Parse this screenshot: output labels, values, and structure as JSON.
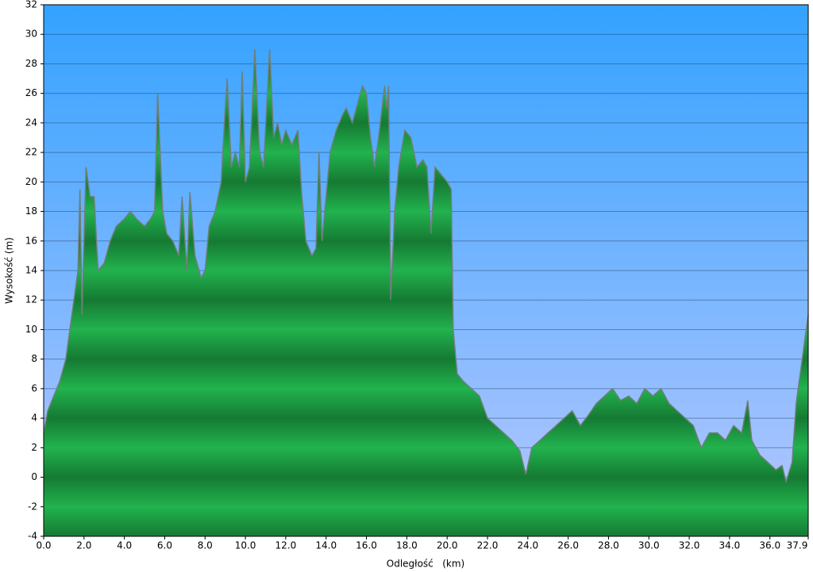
{
  "chart_data": {
    "type": "area",
    "x_label": "Odległość   (km)",
    "y_label": "Wysokość (m)",
    "color": "#1fa84a",
    "xlim": [
      0,
      37.9
    ],
    "ylim": [
      -4,
      32
    ],
    "xticks": [
      {
        "value": 0,
        "label": "0.0"
      },
      {
        "value": 2,
        "label": "2.0"
      },
      {
        "value": 4,
        "label": "4.0"
      },
      {
        "value": 6,
        "label": "6.0"
      },
      {
        "value": 8,
        "label": "8.0"
      },
      {
        "value": 10,
        "label": "10.0"
      },
      {
        "value": 12,
        "label": "12.0"
      },
      {
        "value": 14,
        "label": "14.0"
      },
      {
        "value": 16,
        "label": "16.0"
      },
      {
        "value": 18,
        "label": "18.0"
      },
      {
        "value": 20,
        "label": "20.0"
      },
      {
        "value": 22,
        "label": "22.0"
      },
      {
        "value": 24,
        "label": "24.0"
      },
      {
        "value": 26,
        "label": "26.0"
      },
      {
        "value": 28,
        "label": "28.0"
      },
      {
        "value": 30,
        "label": "30.0"
      },
      {
        "value": 32,
        "label": "32.0"
      },
      {
        "value": 34,
        "label": "34.0"
      },
      {
        "value": 36,
        "label": "36.0"
      },
      37.9
    ],
    "yticks": [
      -4,
      -2,
      0,
      2,
      4,
      6,
      8,
      10,
      12,
      14,
      16,
      18,
      20,
      22,
      24,
      26,
      28,
      30,
      32
    ],
    "grid": true,
    "x": [
      0,
      0.2,
      0.5,
      0.8,
      1.1,
      1.3,
      1.5,
      1.7,
      1.8,
      1.9,
      2.0,
      2.1,
      2.3,
      2.5,
      2.7,
      3.0,
      3.3,
      3.6,
      4.0,
      4.3,
      4.6,
      5.0,
      5.3,
      5.5,
      5.65,
      5.9,
      6.1,
      6.4,
      6.7,
      6.86,
      7.1,
      7.25,
      7.5,
      7.8,
      8.0,
      8.2,
      8.5,
      8.8,
      9.0,
      9.1,
      9.3,
      9.5,
      9.7,
      9.84,
      10.0,
      10.2,
      10.47,
      10.7,
      10.9,
      11.2,
      11.4,
      11.6,
      11.8,
      12.0,
      12.3,
      12.6,
      12.8,
      13.0,
      13.3,
      13.5,
      13.65,
      13.8,
      14.2,
      14.5,
      14.8,
      15.0,
      15.3,
      15.6,
      15.8,
      16.0,
      16.2,
      16.4,
      16.6,
      16.9,
      17.0,
      17.1,
      17.2,
      17.4,
      17.6,
      17.9,
      18.2,
      18.5,
      18.8,
      19.0,
      19.2,
      19.4,
      19.7,
      20.0,
      20.2,
      20.3,
      20.5,
      20.8,
      21.2,
      21.6,
      22.0,
      22.4,
      22.8,
      23.2,
      23.6,
      23.9,
      24.2,
      24.6,
      25.0,
      25.4,
      25.8,
      26.2,
      26.6,
      27.0,
      27.4,
      27.8,
      28.2,
      28.6,
      29.0,
      29.4,
      29.8,
      30.2,
      30.6,
      31.0,
      31.4,
      31.8,
      32.2,
      32.6,
      33.0,
      33.4,
      33.8,
      34.2,
      34.6,
      34.9,
      35.1,
      35.5,
      35.9,
      36.3,
      36.6,
      36.8,
      37.1,
      37.3,
      37.6,
      37.9
    ],
    "values": [
      3,
      4.5,
      5.5,
      6.5,
      8,
      10,
      12,
      14,
      19.5,
      11,
      16,
      21,
      19,
      19,
      14,
      14.5,
      16,
      17,
      17.5,
      18,
      17.5,
      17,
      17.5,
      18,
      26,
      18,
      16.5,
      16,
      15,
      19,
      14,
      19.3,
      15,
      13.5,
      14,
      17,
      18,
      20,
      25,
      27,
      21,
      22,
      21,
      27.5,
      20,
      21,
      29,
      22,
      21,
      29,
      23,
      24,
      22.5,
      23.5,
      22.5,
      23.5,
      19,
      16,
      15,
      15.5,
      22,
      16,
      22,
      23.5,
      24.5,
      25,
      24,
      25.5,
      26.5,
      26,
      23,
      21,
      23,
      26.5,
      25,
      26.5,
      12,
      18,
      21,
      23.5,
      23,
      21,
      21.5,
      21,
      16.5,
      21,
      20.5,
      20,
      19.5,
      10,
      7,
      6.5,
      6,
      5.5,
      4,
      3.5,
      3,
      2.5,
      1.8,
      0.2,
      2,
      2.5,
      3,
      3.5,
      4,
      4.5,
      3.5,
      4.2,
      5,
      5.5,
      6,
      5.2,
      5.5,
      5,
      6,
      5.5,
      6,
      5,
      4.5,
      4,
      3.5,
      2,
      3,
      3,
      2.5,
      3.5,
      3,
      5.2,
      2.5,
      1.5,
      1,
      0.5,
      0.8,
      -0.3,
      1,
      5,
      8,
      11
    ]
  }
}
